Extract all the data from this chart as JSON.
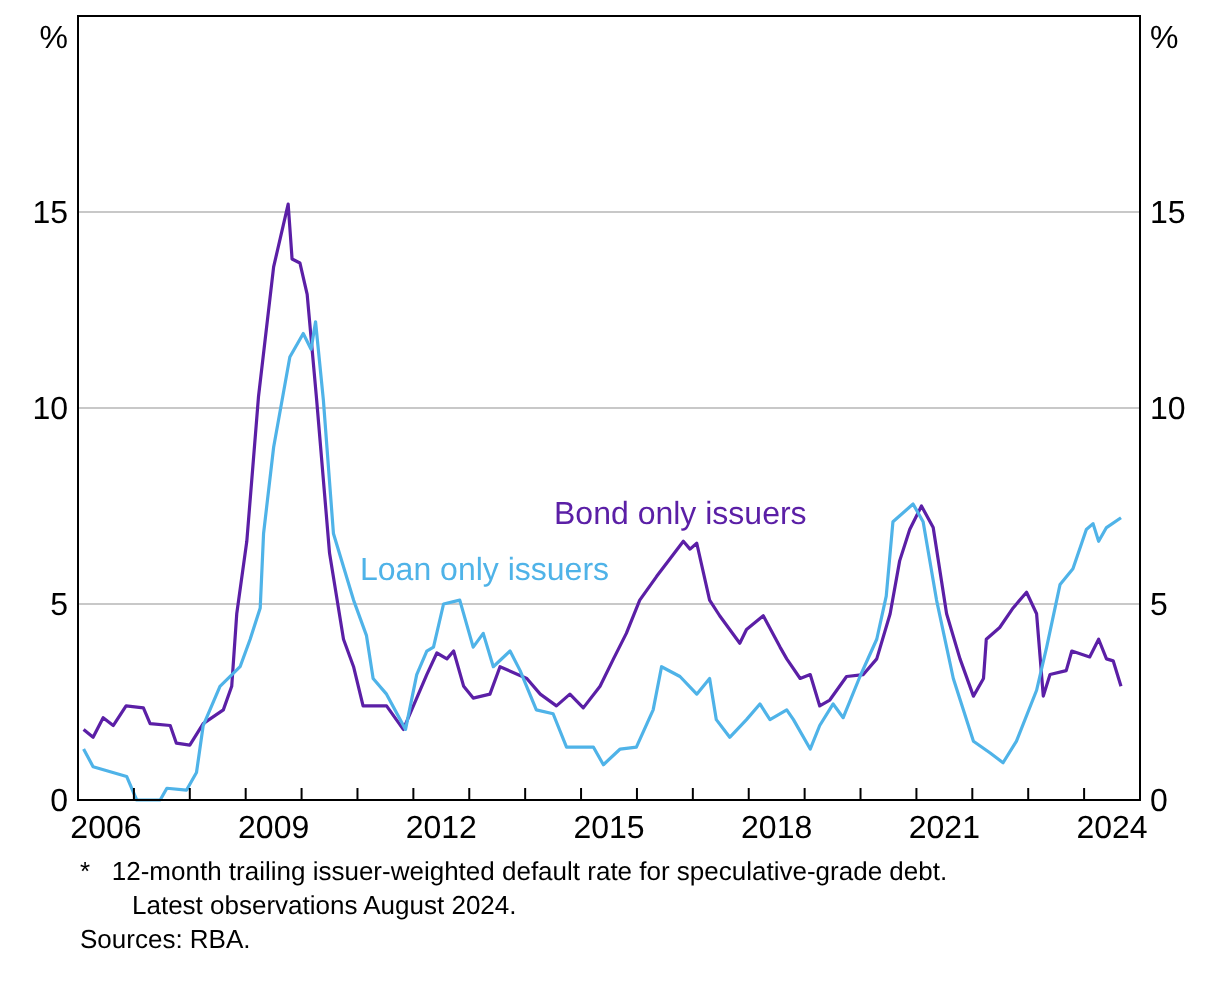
{
  "chart_data": {
    "type": "line",
    "xlim": [
      2006,
      2025
    ],
    "xticks": [
      {
        "value": 2006.5,
        "label": "2006"
      },
      {
        "value": 2009.5,
        "label": "2009"
      },
      {
        "value": 2012.5,
        "label": "2012"
      },
      {
        "value": 2015.5,
        "label": "2015"
      },
      {
        "value": 2018.5,
        "label": "2018"
      },
      {
        "value": 2021.5,
        "label": "2021"
      },
      {
        "value": 2024.5,
        "label": "2024"
      },
      {
        "value": 2007,
        "label": null
      },
      {
        "value": 2008,
        "label": null
      },
      {
        "value": 2009,
        "label": null
      },
      {
        "value": 2010,
        "label": null
      },
      {
        "value": 2011,
        "label": null
      },
      {
        "value": 2012,
        "label": null
      },
      {
        "value": 2013,
        "label": null
      },
      {
        "value": 2014,
        "label": null
      },
      {
        "value": 2015,
        "label": null
      },
      {
        "value": 2016,
        "label": null
      },
      {
        "value": 2017,
        "label": null
      },
      {
        "value": 2018,
        "label": null
      },
      {
        "value": 2019,
        "label": null
      },
      {
        "value": 2020,
        "label": null
      },
      {
        "value": 2021,
        "label": null
      },
      {
        "value": 2022,
        "label": null
      },
      {
        "value": 2023,
        "label": null
      },
      {
        "value": 2024,
        "label": null
      }
    ],
    "ylim": [
      0,
      20
    ],
    "yticks": [
      0,
      5,
      10,
      15
    ],
    "y2lim": [
      0,
      20
    ],
    "y2ticks": [
      0,
      5,
      10,
      15
    ],
    "ylabel": "%",
    "y2label": "%",
    "grid": "y",
    "marker": "none",
    "line_style": "solid",
    "annotations": [
      "*   12-month trailing issuer-weighted default rate for speculative-grade debt. Latest observations August 2024.",
      "Sources: RBA."
    ],
    "series": [
      {
        "name": "Bond only issuers",
        "color": "#5b1fa6",
        "x": [
          2006.1,
          2006.27,
          2006.45,
          2006.63,
          2006.86,
          2007.17,
          2007.29,
          2007.65,
          2007.76,
          2008.0,
          2008.24,
          2008.6,
          2008.75,
          2008.84,
          2009.02,
          2009.23,
          2009.5,
          2009.76,
          2009.83,
          2009.97,
          2010.1,
          2010.27,
          2010.5,
          2010.75,
          2010.93,
          2011.1,
          2011.52,
          2011.82,
          2012.24,
          2012.42,
          2012.6,
          2012.72,
          2012.9,
          2013.07,
          2013.37,
          2013.55,
          2014.03,
          2014.27,
          2014.56,
          2014.8,
          2015.04,
          2015.34,
          2015.58,
          2015.81,
          2016.05,
          2016.35,
          2016.83,
          2016.95,
          2017.07,
          2017.3,
          2017.48,
          2017.84,
          2017.96,
          2018.26,
          2018.56,
          2018.68,
          2018.92,
          2019.1,
          2019.27,
          2019.45,
          2019.75,
          2020.05,
          2020.29,
          2020.53,
          2020.7,
          2020.88,
          2021.09,
          2021.3,
          2021.54,
          2021.78,
          2022.02,
          2022.2,
          2022.25,
          2022.49,
          2022.73,
          2022.97,
          2023.15,
          2023.27,
          2023.39,
          2023.68,
          2023.78,
          2024.1,
          2024.26,
          2024.4,
          2024.52,
          2024.66
        ],
        "values": [
          1.8,
          1.6,
          2.1,
          1.9,
          2.4,
          2.35,
          1.95,
          1.9,
          1.45,
          1.4,
          1.95,
          2.3,
          2.9,
          4.75,
          6.6,
          10.3,
          13.6,
          15.2,
          13.8,
          13.7,
          12.9,
          10.2,
          6.3,
          4.1,
          3.4,
          2.4,
          2.4,
          1.8,
          3.2,
          3.75,
          3.6,
          3.8,
          2.9,
          2.6,
          2.7,
          3.4,
          3.1,
          2.7,
          2.4,
          2.7,
          2.35,
          2.9,
          3.6,
          4.25,
          5.1,
          5.7,
          6.6,
          6.4,
          6.55,
          5.1,
          4.7,
          4.0,
          4.35,
          4.7,
          3.9,
          3.6,
          3.1,
          3.2,
          2.4,
          2.55,
          3.15,
          3.2,
          3.6,
          4.75,
          6.1,
          6.9,
          7.5,
          6.95,
          4.75,
          3.6,
          2.65,
          3.1,
          4.1,
          4.4,
          4.9,
          5.3,
          4.75,
          2.65,
          3.2,
          3.3,
          3.8,
          3.65,
          4.1,
          3.6,
          3.55,
          2.9
        ]
      },
      {
        "name": "Loan only issuers",
        "color": "#4fb3e8",
        "x": [
          2006.1,
          2006.27,
          2006.87,
          2007.05,
          2007.47,
          2007.59,
          2007.94,
          2008.12,
          2008.24,
          2008.54,
          2008.9,
          2009.08,
          2009.26,
          2009.32,
          2009.5,
          2009.79,
          2010.03,
          2010.17,
          2010.25,
          2010.39,
          2010.57,
          2010.93,
          2011.16,
          2011.28,
          2011.52,
          2011.86,
          2012.06,
          2012.24,
          2012.36,
          2012.54,
          2012.83,
          2013.07,
          2013.25,
          2013.43,
          2013.73,
          2013.91,
          2014.2,
          2014.5,
          2014.74,
          2015.22,
          2015.4,
          2015.7,
          2015.99,
          2016.29,
          2016.44,
          2016.77,
          2017.07,
          2017.3,
          2017.42,
          2017.66,
          2017.96,
          2018.2,
          2018.38,
          2018.68,
          2018.8,
          2019.1,
          2019.27,
          2019.51,
          2019.69,
          2019.99,
          2020.29,
          2020.46,
          2020.58,
          2020.94,
          2021.12,
          2021.36,
          2021.66,
          2022.02,
          2022.32,
          2022.55,
          2022.79,
          2023.15,
          2023.33,
          2023.57,
          2023.8,
          2024.04,
          2024.16,
          2024.26,
          2024.4,
          2024.66
        ],
        "values": [
          1.3,
          0.85,
          0.6,
          0,
          0,
          0.3,
          0.25,
          0.7,
          1.9,
          2.9,
          3.4,
          4.1,
          4.9,
          6.8,
          9.0,
          11.3,
          11.9,
          11.5,
          12.2,
          10.2,
          6.8,
          5.1,
          4.2,
          3.1,
          2.7,
          1.8,
          3.2,
          3.8,
          3.9,
          5.0,
          5.1,
          3.9,
          4.25,
          3.4,
          3.8,
          3.3,
          2.3,
          2.2,
          1.35,
          1.35,
          0.9,
          1.3,
          1.35,
          2.3,
          3.4,
          3.15,
          2.7,
          3.1,
          2.05,
          1.6,
          2.05,
          2.45,
          2.05,
          2.3,
          2.05,
          1.3,
          1.9,
          2.45,
          2.1,
          3.15,
          4.1,
          5.2,
          7.1,
          7.55,
          7.1,
          5.1,
          3.1,
          1.5,
          1.2,
          0.95,
          1.5,
          2.8,
          3.9,
          5.5,
          5.9,
          6.9,
          7.05,
          6.6,
          6.95,
          7.2
        ]
      }
    ]
  }
}
